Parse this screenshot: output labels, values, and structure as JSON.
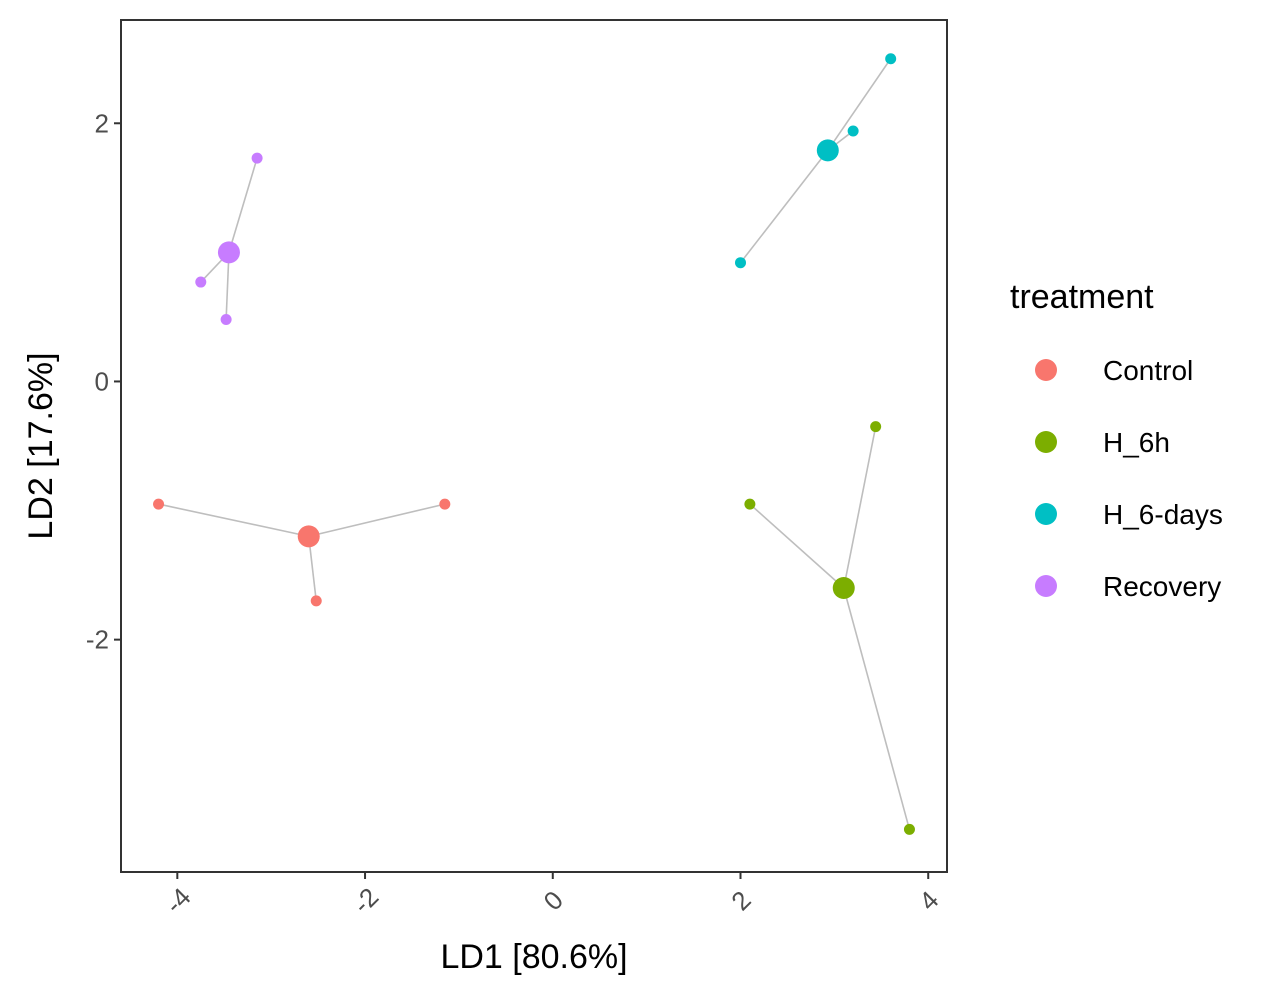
{
  "chart_data": {
    "type": "scatter",
    "title": "",
    "xlabel": "LD1 [80.6%]",
    "ylabel": "LD2 [17.6%]",
    "xlim": [
      -4.6,
      4.2
    ],
    "ylim": [
      -3.8,
      2.8
    ],
    "x_ticks": [
      -4,
      -2,
      0,
      2,
      4
    ],
    "y_ticks": [
      -2,
      0,
      2
    ],
    "x_tick_labels": [
      "-4",
      "-2",
      "0",
      "2",
      "4"
    ],
    "y_tick_labels": [
      "-2",
      "0",
      "2"
    ],
    "x_tick_label_rotation": "45deg",
    "grid": false,
    "legend_position": "right",
    "legend_title": "treatment",
    "series": [
      {
        "name": "Control",
        "color": "#F8766D",
        "centroid": {
          "x": -2.6,
          "y": -1.2
        },
        "points": [
          {
            "x": -4.2,
            "y": -0.95
          },
          {
            "x": -1.15,
            "y": -0.95
          },
          {
            "x": -2.52,
            "y": -1.7
          }
        ]
      },
      {
        "name": "H_6h",
        "color": "#7CAE00",
        "centroid": {
          "x": 3.1,
          "y": -1.6
        },
        "points": [
          {
            "x": 2.1,
            "y": -0.95
          },
          {
            "x": 3.44,
            "y": -0.35
          },
          {
            "x": 3.8,
            "y": -3.47
          }
        ]
      },
      {
        "name": "H_6-days",
        "color": "#00BFC4",
        "centroid": {
          "x": 2.93,
          "y": 1.79
        },
        "points": [
          {
            "x": 2.0,
            "y": 0.92
          },
          {
            "x": 3.2,
            "y": 1.94
          },
          {
            "x": 3.6,
            "y": 2.5
          }
        ]
      },
      {
        "name": "Recovery",
        "color": "#C77CFF",
        "centroid": {
          "x": -3.45,
          "y": 1.0
        },
        "points": [
          {
            "x": -3.15,
            "y": 1.73
          },
          {
            "x": -3.75,
            "y": 0.77
          },
          {
            "x": -3.48,
            "y": 0.48
          }
        ]
      }
    ],
    "connector_color": "#BEBEBE"
  }
}
